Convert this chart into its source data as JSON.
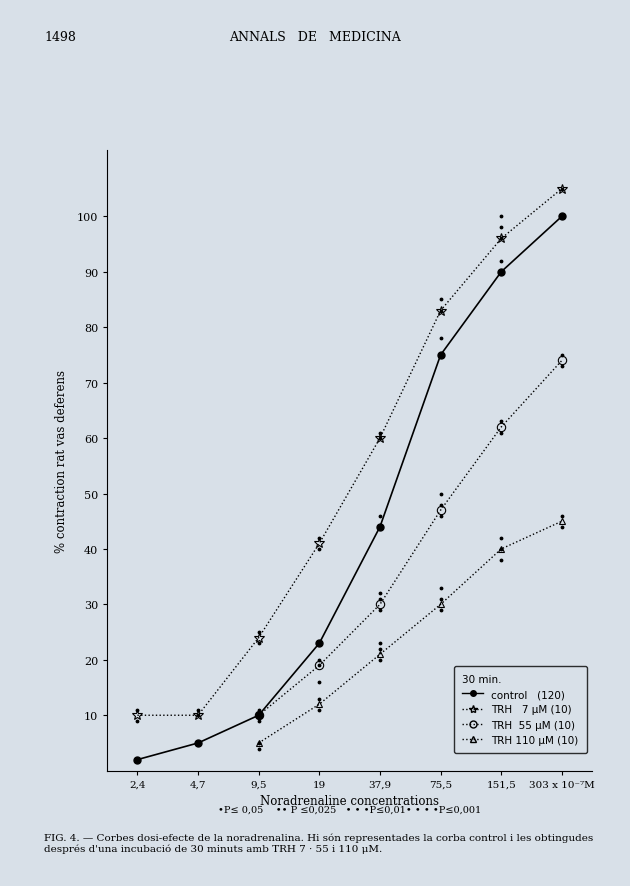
{
  "title_page": "ANNALS   DE   MEDICINA",
  "page_num": "1498",
  "xlabel": "Noradrenaline concentrations",
  "ylabel": "% contraction rat vas deferens",
  "x_labels": [
    "2,4",
    "4,7",
    "9,5",
    "19",
    "37,9",
    "75,5",
    "151,5",
    "303 x 10⁻⁷M"
  ],
  "x_values": [
    1,
    2,
    3,
    4,
    5,
    6,
    7,
    8
  ],
  "yticks": [
    10,
    20,
    30,
    40,
    50,
    60,
    70,
    80,
    90,
    100
  ],
  "control_x": [
    1,
    2,
    3,
    4,
    5,
    6,
    7,
    8
  ],
  "control_y": [
    2,
    5,
    10,
    23,
    44,
    75,
    90,
    100
  ],
  "trh7_x": [
    1,
    2,
    3,
    4,
    5,
    6,
    7,
    8
  ],
  "trh7_y": [
    10,
    10,
    24,
    41,
    60,
    83,
    96,
    105
  ],
  "trh55_x": [
    3,
    4,
    5,
    6,
    7,
    8
  ],
  "trh55_y": [
    10,
    19,
    30,
    47,
    62,
    74
  ],
  "trh110_x": [
    3,
    4,
    5,
    6,
    7,
    8
  ],
  "trh110_y": [
    5,
    12,
    21,
    30,
    40,
    45
  ],
  "scatter_control_x": [
    1,
    2,
    3,
    4,
    5,
    5,
    6,
    6,
    7,
    7,
    8
  ],
  "scatter_control_y": [
    2,
    5,
    10,
    23,
    44,
    46,
    75,
    78,
    90,
    92,
    100
  ],
  "scatter_trh7_x": [
    1,
    1,
    2,
    2,
    3,
    3,
    4,
    4,
    5,
    5,
    6,
    6,
    7,
    7,
    7,
    8
  ],
  "scatter_trh7_y": [
    9,
    11,
    10,
    11,
    23,
    25,
    40,
    42,
    60,
    61,
    83,
    85,
    96,
    98,
    100,
    105
  ],
  "scatter_trh55_x": [
    3,
    3,
    4,
    4,
    4,
    5,
    5,
    5,
    6,
    6,
    6,
    7,
    7,
    8,
    8
  ],
  "scatter_trh55_y": [
    9,
    11,
    16,
    19,
    20,
    29,
    31,
    32,
    46,
    48,
    50,
    61,
    63,
    73,
    75
  ],
  "scatter_trh110_x": [
    3,
    3,
    4,
    4,
    5,
    5,
    5,
    6,
    6,
    6,
    7,
    7,
    7,
    8,
    8
  ],
  "scatter_trh110_y": [
    4,
    5,
    11,
    13,
    20,
    22,
    23,
    29,
    31,
    33,
    38,
    40,
    42,
    44,
    46
  ],
  "legend_title": "30 min.",
  "legend_items": [
    "control   (120)",
    "TRH   7 μM (10)",
    "TRH  55 μM (10)",
    "TRH 110 μM (10)"
  ],
  "caption": "FIG. 4. — Corbes dosi-efecte de la noradrenalina. Hi són representades la corba control i les obtingudes després d'una incubació de 30 minuts amb TRH 7 · 55 i 110 μM.",
  "sig_line": "•P≤ 0,05    •• P ≤0,025   • • •P≤0,01• • • •P≤0,001",
  "bg_color": "#d8e0e8"
}
